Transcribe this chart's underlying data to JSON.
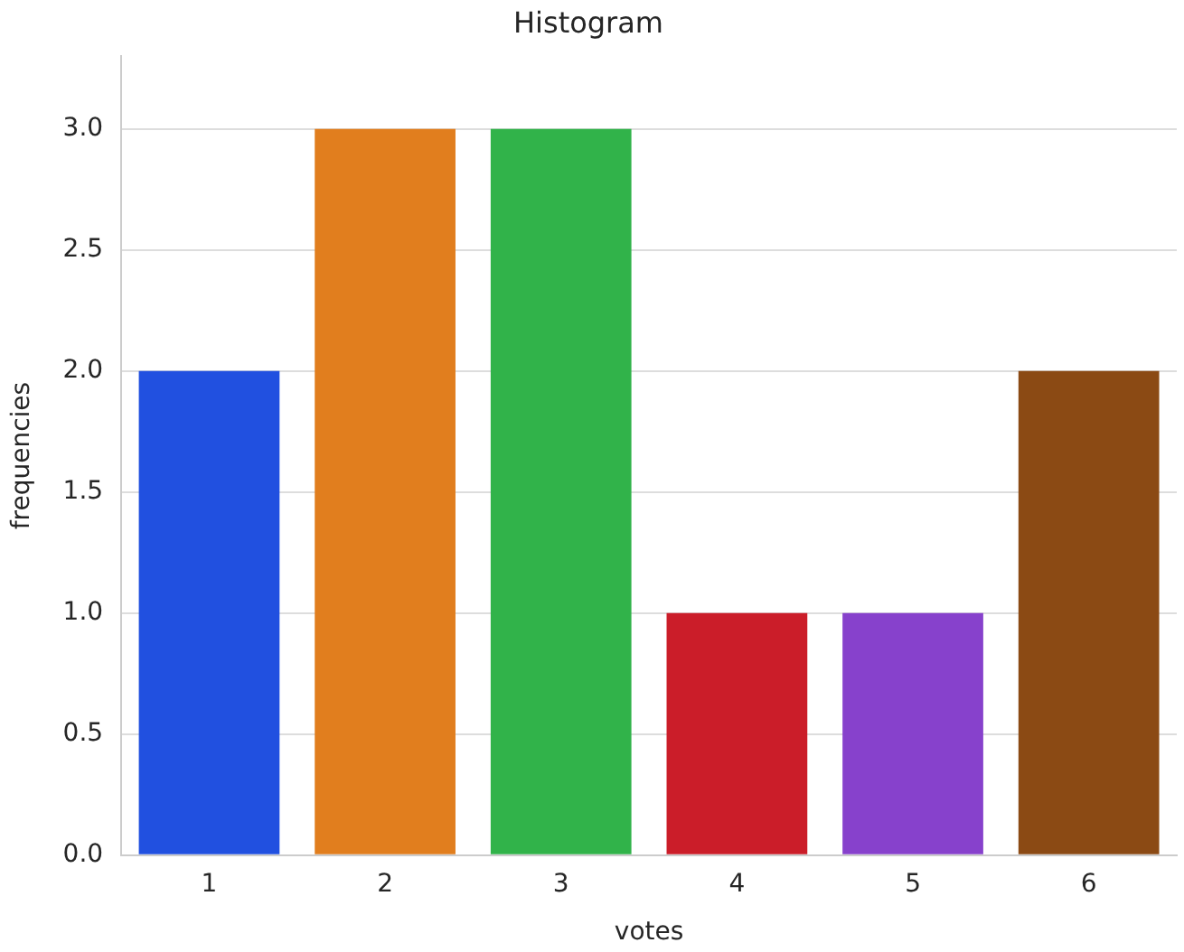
{
  "chart_data": {
    "type": "bar",
    "title": "Histogram",
    "xlabel": "votes",
    "ylabel": "frequencies",
    "categories": [
      "1",
      "2",
      "3",
      "4",
      "5",
      "6"
    ],
    "values": [
      2,
      3,
      3,
      1,
      1,
      2
    ],
    "colors": [
      "#2150e0",
      "#e17e1e",
      "#31b34a",
      "#cb1d29",
      "#8741cc",
      "#8b4a14"
    ],
    "ylim": [
      0,
      3.3
    ],
    "yticks": [
      {
        "value": 0,
        "label": "0.0"
      },
      {
        "value": 0.5,
        "label": "0.5"
      },
      {
        "value": 1,
        "label": "1.0"
      },
      {
        "value": 1.5,
        "label": "1.5"
      },
      {
        "value": 2,
        "label": "2.0"
      },
      {
        "value": 2.5,
        "label": "2.5"
      },
      {
        "value": 3,
        "label": "3.0"
      }
    ],
    "grid": "y",
    "legend": false
  }
}
